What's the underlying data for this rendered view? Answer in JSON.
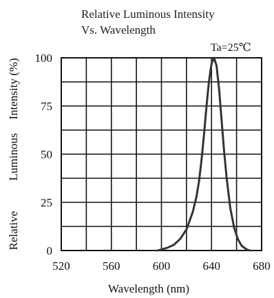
{
  "chart_data": {
    "type": "line",
    "title_lines": [
      "Relative Luminous Intensity",
      "Vs. Wavelength"
    ],
    "xlabel": "Wavelength (nm)",
    "ylabel_parts": [
      "Relative",
      "Luminous",
      "Intensity (%)"
    ],
    "annotation": "Ta=25℃",
    "xlim": [
      520,
      680
    ],
    "ylim": [
      0,
      100
    ],
    "x_ticks": [
      520,
      560,
      600,
      640,
      680
    ],
    "y_ticks": [
      0,
      25,
      50,
      75,
      100
    ],
    "grid": true,
    "line_color": "#333333",
    "series": [
      {
        "x": [
          597,
          600,
          605,
          610,
          615,
          620,
          625,
          628,
          630,
          632,
          634,
          636,
          638,
          640,
          642,
          644,
          646,
          648,
          650,
          652,
          655,
          658,
          661,
          664,
          667,
          669,
          671
        ],
        "y": [
          0,
          0.5,
          1.5,
          3,
          6,
          11,
          20,
          28,
          36,
          47,
          60,
          75,
          88,
          97,
          100,
          96,
          84,
          68,
          52,
          38,
          22,
          12,
          6,
          2.5,
          1,
          0.3,
          0
        ]
      }
    ]
  }
}
